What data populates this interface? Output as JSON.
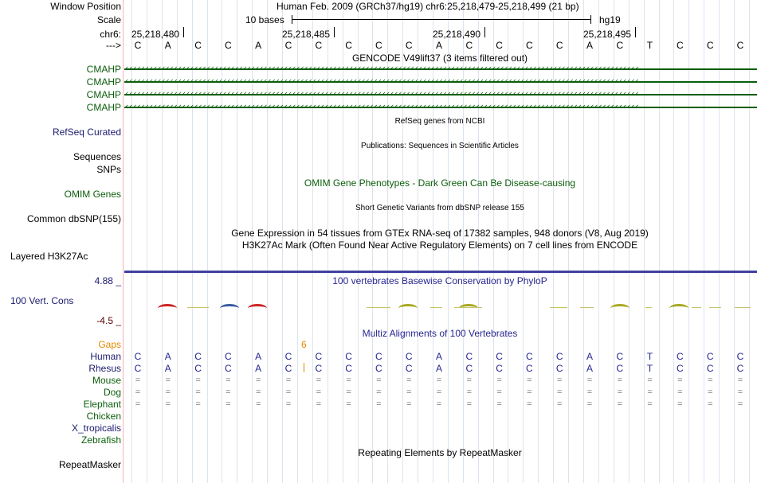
{
  "header": {
    "window_position_label": "Window Position",
    "window_position_text": "Human Feb. 2009 (GRCh37/hg19)   chr6:25,218,479-25,218,499 (21 bp)",
    "scale_label": "Scale",
    "scale_text": "10 bases",
    "scale_assembly": "hg19",
    "chrom_label": "chr6:",
    "coords": [
      "25,218,480",
      "25,218,485",
      "25,218,490",
      "25,218,495"
    ],
    "strand_label": "--->"
  },
  "sequence": [
    "C",
    "A",
    "C",
    "C",
    "A",
    "C",
    "C",
    "C",
    "C",
    "C",
    "A",
    "C",
    "C",
    "C",
    "C",
    "A",
    "C",
    "T",
    "C",
    "C",
    "C"
  ],
  "gencode": {
    "title": "GENCODE V49lift37 (3 items filtered out)",
    "rows": [
      "CMAHP",
      "CMAHP",
      "CMAHP",
      "CMAHP"
    ],
    "arrows": "‹‹‹‹‹‹‹‹‹‹‹‹‹‹‹‹‹‹‹‹‹‹‹‹‹‹‹‹‹‹‹‹‹‹‹‹‹‹‹‹‹‹‹‹‹‹‹‹‹‹‹‹‹‹‹‹‹‹‹‹‹‹‹‹‹‹‹‹‹‹‹‹‹‹‹‹‹‹‹‹‹‹‹‹‹‹‹‹‹‹‹‹‹‹‹‹‹‹‹‹‹‹‹‹‹‹‹‹‹‹‹‹‹‹‹‹‹‹‹‹‹‹‹‹‹‹"
  },
  "tracks": {
    "refseq_label": "RefSeq Curated",
    "refseq_title": "RefSeq genes from NCBI",
    "publications_title": "Publications: Sequences in Scientific Articles",
    "sequences_label": "Sequences",
    "snps_label": "SNPs",
    "omim_label": "OMIM Genes",
    "omim_title": "OMIM Gene Phenotypes - Dark Green Can Be Disease-causing",
    "dbsnp_label": "Common dbSNP(155)",
    "dbsnp_title": "Short Genetic Variants from dbSNP release 155",
    "gtex_title": "Gene Expression in 54 tissues from GTEx RNA-seq of 17382 samples, 948 donors (V8, Aug 2019)",
    "h3k27ac_title": "H3K27Ac Mark (Often Found Near Active Regulatory Elements) on 7 cell lines from ENCODE",
    "h3k27ac_label": "Layered H3K27Ac",
    "conservation_title": "100 vertebrates Basewise Conservation by PhyloP",
    "conservation_max": "4.88 _",
    "conservation_label": "100 Vert. Cons",
    "conservation_min": "-4.5 _",
    "multiz_title": "Multiz Alignments of 100 Vertebrates",
    "repeat_title": "Repeating Elements by RepeatMasker",
    "repeat_label": "RepeatMasker"
  },
  "multiz": {
    "gaps_label": "Gaps",
    "gap_count": "6",
    "species": [
      "Human",
      "Rhesus",
      "Mouse",
      "Dog",
      "Elephant",
      "Chicken",
      "X_tropicalis",
      "Zebrafish"
    ],
    "human_seq": [
      "C",
      "A",
      "C",
      "C",
      "A",
      "C",
      "C",
      "C",
      "C",
      "C",
      "A",
      "C",
      "C",
      "C",
      "C",
      "A",
      "C",
      "T",
      "C",
      "C",
      "C"
    ],
    "rhesus_seq": [
      "C",
      "A",
      "C",
      "C",
      "A",
      "C",
      "C",
      "C",
      "C",
      "C",
      "A",
      "C",
      "C",
      "C",
      "C",
      "A",
      "C",
      "T",
      "C",
      "C",
      "C"
    ],
    "conserved_symbol": "="
  },
  "colors": {
    "label_green": "#0b5e0b",
    "label_navy": "#1a1a6e",
    "orange": "#e08a00",
    "multiz_blue": "#262691",
    "track_sep": "#4040a0"
  }
}
